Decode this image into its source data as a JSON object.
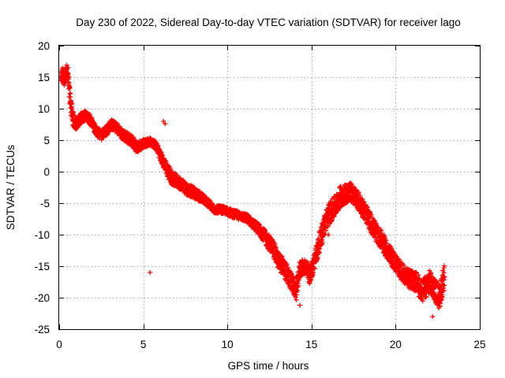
{
  "chart_data": {
    "type": "scatter",
    "title": "Day 230 of 2022, Sidereal Day-to-day VTEC variation (SDTVAR) for receiver lago",
    "xlabel": "GPS time / hours",
    "ylabel": "SDTVAR / TECUs",
    "xlim": [
      0,
      25
    ],
    "ylim": [
      -25,
      20
    ],
    "xticks": [
      0,
      5,
      10,
      15,
      20,
      25
    ],
    "yticks": [
      20,
      15,
      10,
      5,
      0,
      -5,
      -10,
      -15,
      -20,
      -25
    ],
    "grid": true,
    "marker": "+",
    "color": "#ff0000",
    "series": [
      {
        "name": "SDTVAR",
        "trend": [
          [
            0.1,
            15.5
          ],
          [
            0.3,
            15.0
          ],
          [
            0.5,
            16.0
          ],
          [
            0.6,
            13.0
          ],
          [
            0.7,
            10.5
          ],
          [
            0.8,
            8.5
          ],
          [
            1.0,
            7.5
          ],
          [
            1.3,
            8.5
          ],
          [
            1.6,
            9.0
          ],
          [
            1.9,
            8.0
          ],
          [
            2.2,
            6.5
          ],
          [
            2.5,
            5.8
          ],
          [
            2.8,
            6.5
          ],
          [
            3.1,
            7.5
          ],
          [
            3.4,
            7.0
          ],
          [
            3.7,
            6.0
          ],
          [
            4.0,
            5.5
          ],
          [
            4.3,
            5.0
          ],
          [
            4.6,
            3.8
          ],
          [
            5.0,
            4.5
          ],
          [
            5.4,
            4.8
          ],
          [
            5.8,
            4.0
          ],
          [
            6.1,
            2.0
          ],
          [
            6.4,
            0.5
          ],
          [
            6.7,
            -1.0
          ],
          [
            7.0,
            -1.5
          ],
          [
            7.3,
            -2.0
          ],
          [
            7.6,
            -2.8
          ],
          [
            8.0,
            -3.3
          ],
          [
            8.4,
            -4.0
          ],
          [
            8.8,
            -4.8
          ],
          [
            9.2,
            -6.0
          ],
          [
            9.6,
            -6.0
          ],
          [
            10.0,
            -6.3
          ],
          [
            10.4,
            -6.8
          ],
          [
            10.8,
            -7.0
          ],
          [
            11.2,
            -7.5
          ],
          [
            11.6,
            -8.5
          ],
          [
            12.0,
            -9.5
          ],
          [
            12.4,
            -11.0
          ],
          [
            12.7,
            -12.0
          ],
          [
            13.0,
            -14.0
          ],
          [
            13.3,
            -15.0
          ],
          [
            13.6,
            -16.5
          ],
          [
            13.9,
            -18.0
          ],
          [
            14.1,
            -19.0
          ],
          [
            14.3,
            -15.5
          ],
          [
            14.6,
            -15.0
          ],
          [
            14.9,
            -16.5
          ],
          [
            15.2,
            -14.0
          ],
          [
            15.5,
            -11.0
          ],
          [
            15.8,
            -8.0
          ],
          [
            16.1,
            -6.5
          ],
          [
            16.4,
            -5.5
          ],
          [
            16.7,
            -4.0
          ],
          [
            17.0,
            -3.5
          ],
          [
            17.3,
            -3.2
          ],
          [
            17.6,
            -4.0
          ],
          [
            18.0,
            -5.5
          ],
          [
            18.4,
            -7.5
          ],
          [
            18.8,
            -9.5
          ],
          [
            19.2,
            -11.0
          ],
          [
            19.6,
            -13.0
          ],
          [
            20.0,
            -14.5
          ],
          [
            20.4,
            -16.0
          ],
          [
            20.8,
            -17.0
          ],
          [
            21.2,
            -17.5
          ],
          [
            21.6,
            -19.0
          ],
          [
            22.0,
            -17.5
          ],
          [
            22.3,
            -18.5
          ],
          [
            22.6,
            -20.0
          ],
          [
            22.9,
            -16.5
          ]
        ],
        "spread": [
          [
            0.1,
            2.2
          ],
          [
            0.6,
            3.0
          ],
          [
            1.0,
            1.8
          ],
          [
            2.0,
            1.6
          ],
          [
            3.0,
            1.6
          ],
          [
            4.5,
            1.8
          ],
          [
            5.5,
            1.2
          ],
          [
            6.5,
            2.2
          ],
          [
            8.0,
            1.8
          ],
          [
            9.5,
            1.2
          ],
          [
            11.5,
            1.5
          ],
          [
            12.5,
            2.5
          ],
          [
            13.5,
            3.0
          ],
          [
            14.5,
            2.5
          ],
          [
            15.5,
            3.5
          ],
          [
            16.5,
            3.5
          ],
          [
            17.5,
            3.0
          ],
          [
            18.5,
            3.0
          ],
          [
            19.5,
            3.0
          ],
          [
            20.5,
            2.8
          ],
          [
            21.5,
            3.5
          ],
          [
            22.9,
            4.0
          ]
        ],
        "extra_points": [
          [
            6.2,
            8.0
          ],
          [
            6.3,
            7.6
          ],
          [
            5.4,
            -16.0
          ],
          [
            14.3,
            -21.2
          ],
          [
            15.0,
            -14.8
          ],
          [
            16.0,
            -10.0
          ],
          [
            22.2,
            -23.0
          ]
        ]
      }
    ]
  }
}
